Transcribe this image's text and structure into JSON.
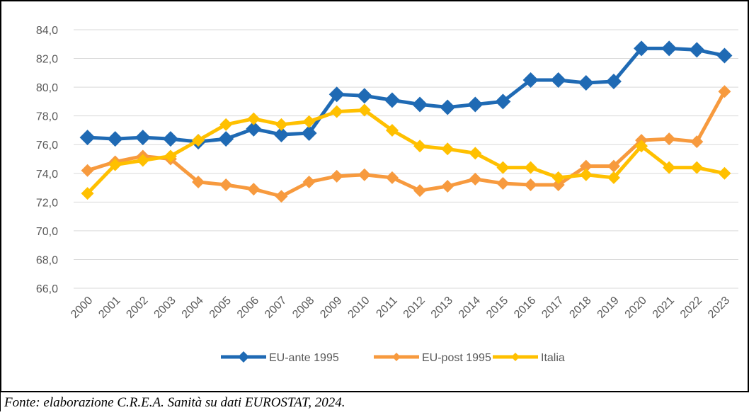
{
  "chart_data": {
    "type": "line",
    "categories": [
      "2000",
      "2001",
      "2002",
      "2003",
      "2004",
      "2005",
      "2006",
      "2007",
      "2008",
      "2009",
      "2010",
      "2011",
      "2012",
      "2013",
      "2014",
      "2015",
      "2016",
      "2017",
      "2018",
      "2019",
      "2020",
      "2021",
      "2022",
      "2023"
    ],
    "series": [
      {
        "name": "EU-ante 1995",
        "color": "#1f6ab4",
        "values": [
          76.5,
          76.4,
          76.5,
          76.4,
          76.2,
          76.4,
          77.1,
          76.7,
          76.8,
          79.5,
          79.4,
          79.1,
          78.8,
          78.6,
          78.8,
          79.0,
          80.5,
          80.5,
          80.3,
          80.4,
          82.7,
          82.7,
          82.6,
          82.2
        ]
      },
      {
        "name": "EU-post 1995",
        "color": "#f79a3e",
        "values": [
          74.2,
          74.8,
          75.2,
          75.0,
          73.4,
          73.2,
          72.9,
          72.4,
          73.4,
          73.8,
          73.9,
          73.7,
          72.8,
          73.1,
          73.6,
          73.3,
          73.2,
          73.2,
          74.5,
          74.5,
          76.3,
          76.4,
          76.2,
          79.7
        ]
      },
      {
        "name": "Italia",
        "color": "#ffc000",
        "values": [
          72.6,
          74.6,
          74.9,
          75.2,
          76.3,
          77.4,
          77.8,
          77.4,
          77.6,
          78.3,
          78.4,
          77.0,
          75.9,
          75.7,
          75.4,
          74.4,
          74.4,
          73.7,
          73.9,
          73.7,
          75.9,
          74.4,
          74.4,
          74.0
        ]
      }
    ],
    "ylim": [
      66,
      84
    ],
    "yticks": [
      {
        "value": 66,
        "label": "66,0"
      },
      {
        "value": 68,
        "label": "68,0"
      },
      {
        "value": 70,
        "label": "70,0"
      },
      {
        "value": 72,
        "label": "72,0"
      },
      {
        "value": 74,
        "label": "74,0"
      },
      {
        "value": 76,
        "label": "76,0"
      },
      {
        "value": 78,
        "label": "78,0"
      },
      {
        "value": 80,
        "label": "80,0"
      },
      {
        "value": 82,
        "label": "82,0"
      },
      {
        "value": 84,
        "label": "84,0"
      }
    ],
    "grid": true,
    "legend": "bottom",
    "caption": "Fonte: elaborazione C.R.E.A. Sanità su dati EUROSTAT, 2024."
  }
}
